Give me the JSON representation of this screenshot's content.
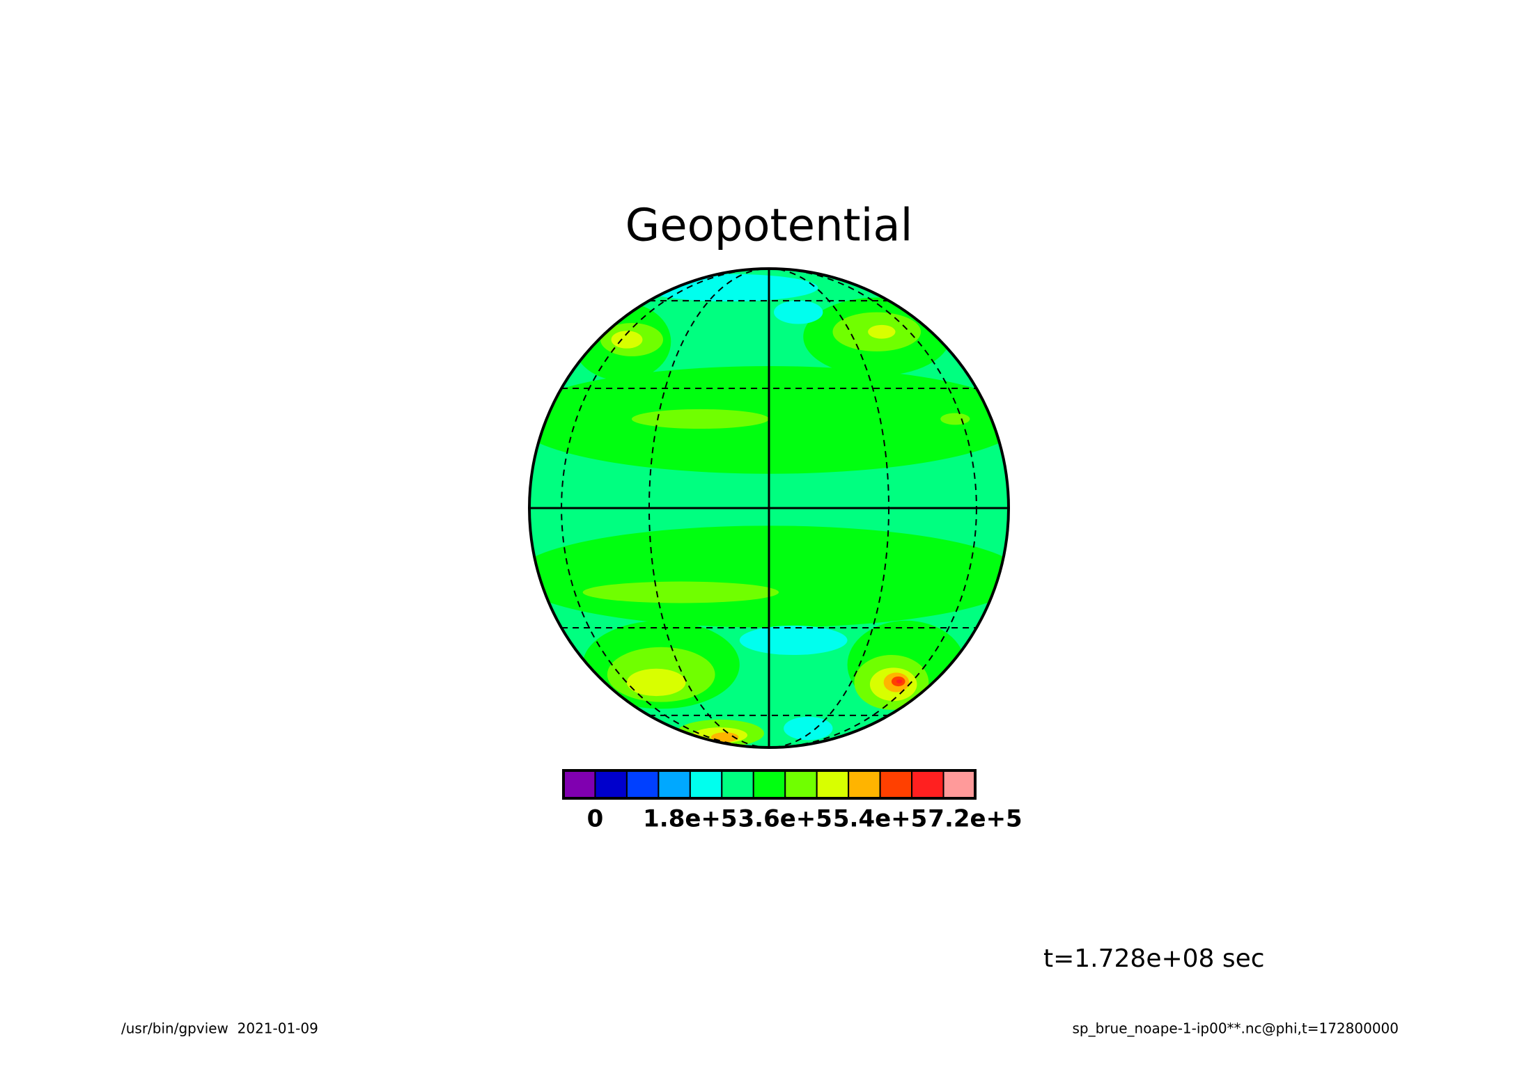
{
  "chart_data": {
    "type": "contour_map",
    "title": "Geopotential",
    "projection": "orthographic",
    "colorbar": {
      "bins": [
        -60000,
        0,
        60000,
        120000,
        180000,
        240000,
        300000,
        360000,
        420000,
        480000,
        540000,
        600000,
        660000,
        720000
      ],
      "colors": [
        "#8000b0",
        "#0000cc",
        "#0040ff",
        "#00a8ff",
        "#00ffee",
        "#00ff80",
        "#00ff10",
        "#70ff00",
        "#d8ff00",
        "#ffb400",
        "#ff4000",
        "#ff2020",
        "#ff9a9a"
      ],
      "ticks": [
        {
          "value": 0,
          "label": "0"
        },
        {
          "value": 180000,
          "label": "1.8e+5"
        },
        {
          "value": 360000,
          "label": "3.6e+5"
        },
        {
          "value": 540000,
          "label": "5.4e+5"
        },
        {
          "value": 720000,
          "label": "7.2e+5"
        }
      ]
    },
    "time_label": "t=1.728e+08 sec",
    "footer_left": "/usr/bin/gpview  2021-01-09",
    "footer_right": "sp_brue_noape-1-ip00**.nc@phi,t=172800000"
  }
}
